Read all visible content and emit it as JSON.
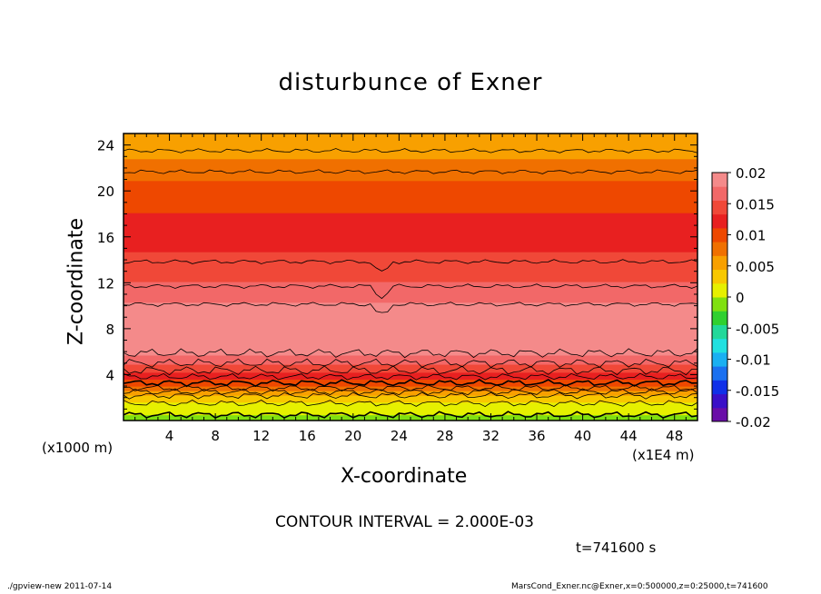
{
  "chart_data": {
    "type": "heatmap",
    "title": "disturbunce of Exner",
    "xlabel": "X-coordinate",
    "ylabel": "Z-coordinate",
    "x_unit_note": "(x1E4 m)",
    "y_unit_note": "(x1000 m)",
    "xlim": [
      0,
      50
    ],
    "ylim": [
      0,
      25
    ],
    "xticks": [
      "4",
      "8",
      "12",
      "16",
      "20",
      "24",
      "28",
      "32",
      "36",
      "40",
      "44",
      "48"
    ],
    "yticks": [
      "4",
      "8",
      "12",
      "16",
      "20",
      "24"
    ],
    "z_profile": [
      {
        "z": 0.0,
        "value": -0.001
      },
      {
        "z": 2.0,
        "value": 0.003
      },
      {
        "z": 3.0,
        "value": 0.009
      },
      {
        "z": 4.5,
        "value": 0.0145
      },
      {
        "z": 5.5,
        "value": 0.0175
      },
      {
        "z": 7.0,
        "value": 0.0195
      },
      {
        "z": 9.0,
        "value": 0.0195
      },
      {
        "z": 10.5,
        "value": 0.0175
      },
      {
        "z": 12.5,
        "value": 0.015
      },
      {
        "z": 16.5,
        "value": 0.012
      },
      {
        "z": 20.0,
        "value": 0.01
      },
      {
        "z": 22.5,
        "value": 0.007
      },
      {
        "z": 25.0,
        "value": 0.0045
      }
    ],
    "colorbar": {
      "min": -0.02,
      "max": 0.02,
      "labels": [
        "0.02",
        "0.015",
        "0.01",
        "0.005",
        "0",
        "-0.005",
        "-0.01",
        "-0.015",
        "-0.02"
      ],
      "colors": [
        "#6a0ea8",
        "#3a10c8",
        "#1030e8",
        "#1a70f0",
        "#19b0f2",
        "#20e0e0",
        "#22d89a",
        "#30d030",
        "#80e010",
        "#e6f000",
        "#f8c800",
        "#f8a000",
        "#f07000",
        "#ee4800",
        "#e82020",
        "#f04838",
        "#f26868",
        "#f48a8a"
      ]
    }
  },
  "contour_interval": "CONTOUR INTERVAL = 2.000E-03",
  "time_label": "t=741600 s",
  "footer_left": "./gpview-new   2011-07-14",
  "footer_right": "MarsCond_Exner.nc@Exner,x=0:500000,z=0:25000,t=741600"
}
